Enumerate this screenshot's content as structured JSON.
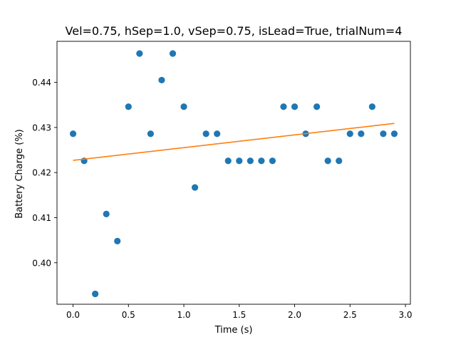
{
  "chart_data": {
    "type": "scatter",
    "title": "Vel=0.75, hSep=1.0, vSep=0.75, isLead=True, trialNum=4",
    "xlabel": "Time (s)",
    "ylabel": "Battery Charge (%)",
    "xlim": [
      -0.145,
      3.045
    ],
    "ylim": [
      0.3908,
      0.4491
    ],
    "xticks": [
      0.0,
      0.5,
      1.0,
      1.5,
      2.0,
      2.5,
      3.0
    ],
    "xtick_labels": [
      "0.0",
      "0.5",
      "1.0",
      "1.5",
      "2.0",
      "2.5",
      "3.0"
    ],
    "yticks": [
      0.4,
      0.41,
      0.42,
      0.43,
      0.44
    ],
    "ytick_labels": [
      "0.40",
      "0.41",
      "0.42",
      "0.43",
      "0.44"
    ],
    "grid": false,
    "series": [
      {
        "type": "scatter",
        "color": "#1f77b4",
        "x": [
          0.0,
          0.1,
          0.2,
          0.3,
          0.4,
          0.5,
          0.6,
          0.7,
          0.8,
          0.9,
          1.0,
          1.1,
          1.2,
          1.3,
          1.4,
          1.5,
          1.6,
          1.7,
          1.8,
          1.9,
          2.0,
          2.1,
          2.2,
          2.3,
          2.4,
          2.5,
          2.6,
          2.7,
          2.8,
          2.9
        ],
        "y": [
          0.4286,
          0.4226,
          0.3931,
          0.4108,
          0.4048,
          0.4346,
          0.4464,
          0.4286,
          0.4405,
          0.4464,
          0.4346,
          0.4167,
          0.4286,
          0.4286,
          0.4226,
          0.4226,
          0.4226,
          0.4226,
          0.4226,
          0.4346,
          0.4346,
          0.4286,
          0.4346,
          0.4226,
          0.4226,
          0.4286,
          0.4286,
          0.4346,
          0.4286,
          0.4286
        ]
      },
      {
        "type": "line",
        "color": "#ff7f0e",
        "x": [
          0.0,
          2.9
        ],
        "y": [
          0.4227,
          0.4309
        ]
      }
    ]
  }
}
